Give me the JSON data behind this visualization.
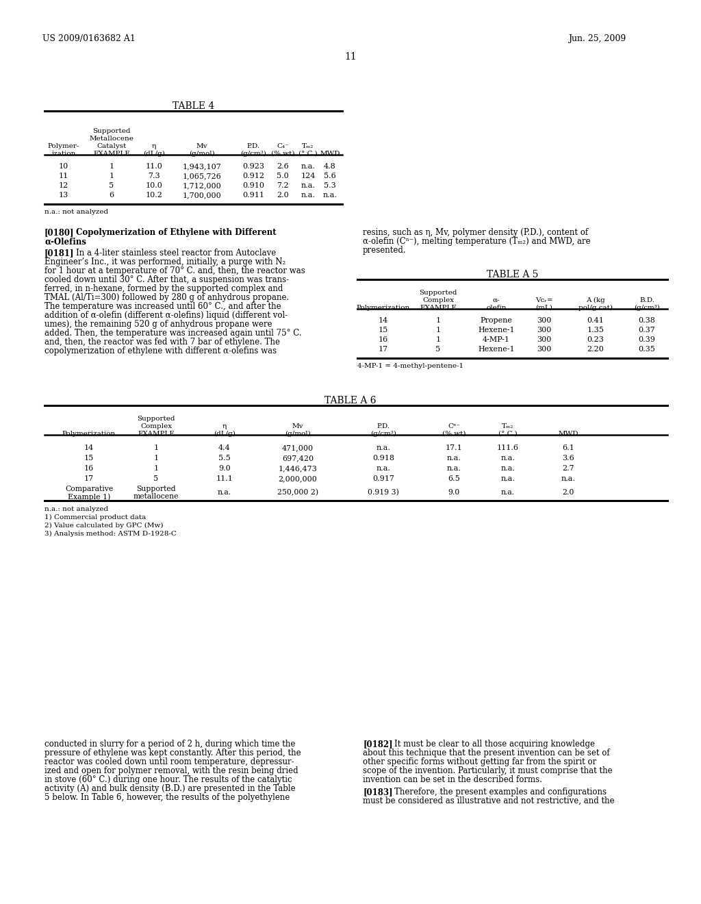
{
  "header_left": "US 2009/0163682 A1",
  "header_right": "Jun. 25, 2009",
  "page_number": "11",
  "table4_title": "TABLE 4",
  "table4_footnote": "n.a.: not analyzed",
  "table4_rows": [
    [
      "10",
      "1",
      "11.0",
      "1,943,107",
      "0.923",
      "2.6",
      "n.a.",
      "4.8"
    ],
    [
      "11",
      "1",
      "7.3",
      "1,065,726",
      "0.912",
      "5.0",
      "124",
      "5.6"
    ],
    [
      "12",
      "5",
      "10.0",
      "1,712,000",
      "0.910",
      "7.2",
      "n.a.",
      "5.3"
    ],
    [
      "13",
      "6",
      "10.2",
      "1,700,000",
      "0.911",
      "2.0",
      "n.a.",
      "n.a."
    ]
  ],
  "para180_lines": [
    "[0180]  Copolymerization of Ethylene with Different",
    "α-Olefins"
  ],
  "para181_lines": [
    "In a 4-liter stainless steel reactor from Autoclave",
    "Engineer’s Inc., it was performed, initially, a purge with N₂",
    "for 1 hour at a temperature of 70° C. and, then, the reactor was",
    "cooled down until 30° C. After that, a suspension was trans-",
    "ferred, in n-hexane, formed by the supported complex and",
    "TMAL (Al/Ti=300) followed by 280 g of anhydrous propane.",
    "The temperature was increased until 60° C., and after the",
    "addition of α-olefin (different α-olefins) liquid (different vol-",
    "umes), the remaining 520 g of anhydrous propane were",
    "added. Then, the temperature was increased again until 75° C.",
    "and, then, the reactor was fed with 7 bar of ethylene. The",
    "copolymerization of ethylene with different α-olefins was"
  ],
  "right_top_lines": [
    "resins, such as η, Mv, polymer density (P.D.), content of",
    "α-olefin (Cⁿ⁻), melting temperature (Tₘ₂) and MWD, are",
    "presented."
  ],
  "tableA5_title": "TABLE A 5",
  "tableA5_footnote": "4-MP-1 = 4-methyl-pentene-1",
  "tableA5_rows": [
    [
      "14",
      "1",
      "Propene",
      "300",
      "0.41",
      "0.38"
    ],
    [
      "15",
      "1",
      "Hexene-1",
      "300",
      "1.35",
      "0.37"
    ],
    [
      "16",
      "1",
      "4-MP-1",
      "300",
      "0.23",
      "0.39"
    ],
    [
      "17",
      "5",
      "Hexene-1",
      "300",
      "2.20",
      "0.35"
    ]
  ],
  "tableA6_title": "TABLE A 6",
  "tableA6_footnotes": [
    "n.a.: not analyzed",
    "1) Commercial product data",
    "2) Value calculated by GPC (Mw)",
    "3) Analysis method: ASTM D-1928-C"
  ],
  "tableA6_rows": [
    [
      "14",
      "1",
      "4.4",
      "471,000",
      "n.a.",
      "17.1",
      "111.6",
      "6.1"
    ],
    [
      "15",
      "1",
      "5.5",
      "697,420",
      "0.918",
      "n.a.",
      "n.a.",
      "3.6"
    ],
    [
      "16",
      "1",
      "9.0",
      "1,446,473",
      "n.a.",
      "n.a.",
      "n.a.",
      "2.7"
    ],
    [
      "17",
      "5",
      "11.1",
      "2,000,000",
      "0.917",
      "6.5",
      "n.a.",
      "n.a."
    ],
    [
      "Comparative",
      "Supported",
      "n.a.",
      "250,000 2)",
      "0.919 3)",
      "9.0",
      "n.a.",
      "2.0"
    ]
  ],
  "bottom_left_lines": [
    "conducted in slurry for a period of 2 h, during which time the",
    "pressure of ethylene was kept constantly. After this period, the",
    "reactor was cooled down until room temperature, depressur-",
    "ized and open for polymer removal, with the resin being dried",
    "in stove (60° C.) during one hour. The results of the catalytic",
    "activity (A) and bulk density (B.D.) are presented in the Table",
    "5 below. In Table 6, however, the results of the polyethylene"
  ],
  "bottom_right_182_lines": [
    "It must be clear to all those acquiring knowledge",
    "about this technique that the present invention can be set of",
    "other specific forms without getting far from the spirit or",
    "scope of the invention. Particularly, it must comprise that the",
    "invention can be set in the described forms."
  ],
  "bottom_right_183_lines": [
    "Therefore, the present examples and configurations",
    "must be considered as illustrative and not restrictive, and the"
  ]
}
